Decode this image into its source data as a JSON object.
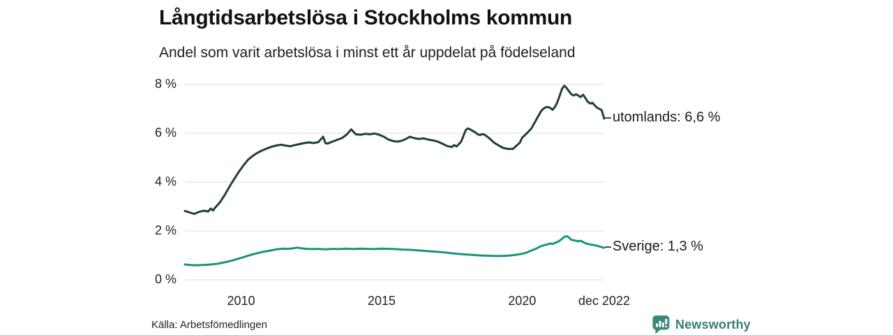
{
  "page": {
    "source": "Källa: Arbetsfömedlingen",
    "brand": {
      "name": "Newsworthy",
      "color": "#377e76",
      "icon": "newsworthy-speech-bubble-chart-icon"
    }
  },
  "chart_data": {
    "type": "line",
    "title": "Långtidsarbetslösa i Stockholms kommun",
    "subtitle": "Andel som varit arbetslösa i minst ett år uppdelat på födelseland",
    "xlabel": "",
    "ylabel": "",
    "xlim": [
      2008.0,
      2022.92
    ],
    "ylim": [
      0,
      8
    ],
    "grid": "horizontal-gridlines",
    "grid_color": "#e3e3e3",
    "background": "#ffffff",
    "legend": "end-of-line-labels",
    "yticks": [
      {
        "v": 0,
        "label": "0 %"
      },
      {
        "v": 2,
        "label": "2 %"
      },
      {
        "v": 4,
        "label": "4 %"
      },
      {
        "v": 6,
        "label": "6 %"
      },
      {
        "v": 8,
        "label": "8 %"
      }
    ],
    "xticks": [
      {
        "v": 2010,
        "label": "2010"
      },
      {
        "v": 2015,
        "label": "2015"
      },
      {
        "v": 2020,
        "label": "2020"
      },
      {
        "v": 2022.92,
        "label": "dec 2022"
      }
    ],
    "series": [
      {
        "name": "utomlands",
        "label": "utomlands: 6,6 %",
        "end_value": "6,6 %",
        "color": "#1f4037",
        "points": [
          [
            2008.0,
            2.82
          ],
          [
            2008.17,
            2.76
          ],
          [
            2008.33,
            2.7
          ],
          [
            2008.5,
            2.78
          ],
          [
            2008.67,
            2.83
          ],
          [
            2008.83,
            2.8
          ],
          [
            2008.92,
            2.92
          ],
          [
            2009.0,
            2.84
          ],
          [
            2009.08,
            2.96
          ],
          [
            2009.25,
            3.18
          ],
          [
            2009.42,
            3.48
          ],
          [
            2009.58,
            3.8
          ],
          [
            2009.75,
            4.12
          ],
          [
            2009.92,
            4.42
          ],
          [
            2010.08,
            4.68
          ],
          [
            2010.25,
            4.92
          ],
          [
            2010.42,
            5.08
          ],
          [
            2010.58,
            5.2
          ],
          [
            2010.75,
            5.3
          ],
          [
            2010.92,
            5.38
          ],
          [
            2011.08,
            5.45
          ],
          [
            2011.25,
            5.5
          ],
          [
            2011.42,
            5.53
          ],
          [
            2011.58,
            5.5
          ],
          [
            2011.75,
            5.47
          ],
          [
            2011.92,
            5.52
          ],
          [
            2012.08,
            5.56
          ],
          [
            2012.25,
            5.6
          ],
          [
            2012.42,
            5.63
          ],
          [
            2012.58,
            5.6
          ],
          [
            2012.75,
            5.64
          ],
          [
            2012.92,
            5.86
          ],
          [
            2013.0,
            5.6
          ],
          [
            2013.08,
            5.58
          ],
          [
            2013.25,
            5.66
          ],
          [
            2013.42,
            5.73
          ],
          [
            2013.58,
            5.8
          ],
          [
            2013.75,
            5.94
          ],
          [
            2013.92,
            6.16
          ],
          [
            2014.0,
            6.06
          ],
          [
            2014.08,
            5.96
          ],
          [
            2014.25,
            5.94
          ],
          [
            2014.42,
            5.98
          ],
          [
            2014.58,
            5.96
          ],
          [
            2014.75,
            5.99
          ],
          [
            2014.92,
            5.94
          ],
          [
            2015.08,
            5.86
          ],
          [
            2015.25,
            5.74
          ],
          [
            2015.42,
            5.68
          ],
          [
            2015.58,
            5.66
          ],
          [
            2015.75,
            5.71
          ],
          [
            2015.92,
            5.8
          ],
          [
            2016.0,
            5.86
          ],
          [
            2016.17,
            5.8
          ],
          [
            2016.33,
            5.77
          ],
          [
            2016.5,
            5.79
          ],
          [
            2016.67,
            5.74
          ],
          [
            2016.83,
            5.71
          ],
          [
            2017.0,
            5.66
          ],
          [
            2017.17,
            5.57
          ],
          [
            2017.33,
            5.48
          ],
          [
            2017.5,
            5.44
          ],
          [
            2017.58,
            5.52
          ],
          [
            2017.67,
            5.46
          ],
          [
            2017.83,
            5.66
          ],
          [
            2017.92,
            5.92
          ],
          [
            2018.0,
            6.14
          ],
          [
            2018.08,
            6.2
          ],
          [
            2018.17,
            6.15
          ],
          [
            2018.25,
            6.09
          ],
          [
            2018.33,
            6.04
          ],
          [
            2018.42,
            5.96
          ],
          [
            2018.5,
            5.93
          ],
          [
            2018.58,
            5.97
          ],
          [
            2018.67,
            5.94
          ],
          [
            2018.83,
            5.8
          ],
          [
            2019.0,
            5.62
          ],
          [
            2019.17,
            5.5
          ],
          [
            2019.33,
            5.4
          ],
          [
            2019.5,
            5.36
          ],
          [
            2019.67,
            5.36
          ],
          [
            2019.75,
            5.44
          ],
          [
            2019.92,
            5.62
          ],
          [
            2020.0,
            5.82
          ],
          [
            2020.17,
            6.0
          ],
          [
            2020.33,
            6.2
          ],
          [
            2020.5,
            6.55
          ],
          [
            2020.67,
            6.9
          ],
          [
            2020.75,
            7.0
          ],
          [
            2020.83,
            7.06
          ],
          [
            2020.92,
            7.08
          ],
          [
            2021.0,
            7.04
          ],
          [
            2021.08,
            6.96
          ],
          [
            2021.17,
            7.08
          ],
          [
            2021.25,
            7.26
          ],
          [
            2021.33,
            7.52
          ],
          [
            2021.42,
            7.82
          ],
          [
            2021.5,
            7.95
          ],
          [
            2021.58,
            7.86
          ],
          [
            2021.67,
            7.72
          ],
          [
            2021.75,
            7.6
          ],
          [
            2021.83,
            7.55
          ],
          [
            2021.92,
            7.6
          ],
          [
            2022.0,
            7.55
          ],
          [
            2022.08,
            7.48
          ],
          [
            2022.17,
            7.58
          ],
          [
            2022.25,
            7.45
          ],
          [
            2022.33,
            7.3
          ],
          [
            2022.42,
            7.22
          ],
          [
            2022.5,
            7.25
          ],
          [
            2022.58,
            7.15
          ],
          [
            2022.67,
            7.05
          ],
          [
            2022.75,
            7.0
          ],
          [
            2022.83,
            6.95
          ],
          [
            2022.92,
            6.6
          ]
        ]
      },
      {
        "name": "Sverige",
        "label": "Sverige: 1,3 %",
        "end_value": "1,3 %",
        "color": "#16957e",
        "points": [
          [
            2008.0,
            0.63
          ],
          [
            2008.17,
            0.61
          ],
          [
            2008.33,
            0.6
          ],
          [
            2008.5,
            0.6
          ],
          [
            2008.67,
            0.61
          ],
          [
            2008.83,
            0.62
          ],
          [
            2009.0,
            0.64
          ],
          [
            2009.17,
            0.66
          ],
          [
            2009.33,
            0.7
          ],
          [
            2009.5,
            0.74
          ],
          [
            2009.67,
            0.79
          ],
          [
            2009.83,
            0.84
          ],
          [
            2010.0,
            0.9
          ],
          [
            2010.17,
            0.96
          ],
          [
            2010.33,
            1.02
          ],
          [
            2010.5,
            1.07
          ],
          [
            2010.67,
            1.12
          ],
          [
            2010.83,
            1.16
          ],
          [
            2011.0,
            1.19
          ],
          [
            2011.17,
            1.23
          ],
          [
            2011.33,
            1.26
          ],
          [
            2011.5,
            1.28
          ],
          [
            2011.67,
            1.27
          ],
          [
            2011.83,
            1.29
          ],
          [
            2012.0,
            1.32
          ],
          [
            2012.17,
            1.29
          ],
          [
            2012.33,
            1.27
          ],
          [
            2012.5,
            1.26
          ],
          [
            2012.75,
            1.27
          ],
          [
            2013.0,
            1.25
          ],
          [
            2013.25,
            1.27
          ],
          [
            2013.5,
            1.26
          ],
          [
            2013.75,
            1.28
          ],
          [
            2014.0,
            1.26
          ],
          [
            2014.25,
            1.28
          ],
          [
            2014.5,
            1.27
          ],
          [
            2014.75,
            1.26
          ],
          [
            2015.0,
            1.28
          ],
          [
            2015.25,
            1.27
          ],
          [
            2015.5,
            1.26
          ],
          [
            2015.75,
            1.24
          ],
          [
            2016.0,
            1.23
          ],
          [
            2016.25,
            1.21
          ],
          [
            2016.5,
            1.19
          ],
          [
            2016.75,
            1.17
          ],
          [
            2017.0,
            1.15
          ],
          [
            2017.25,
            1.12
          ],
          [
            2017.5,
            1.09
          ],
          [
            2017.75,
            1.06
          ],
          [
            2018.0,
            1.04
          ],
          [
            2018.25,
            1.02
          ],
          [
            2018.5,
            1.0
          ],
          [
            2018.75,
            0.99
          ],
          [
            2019.0,
            0.98
          ],
          [
            2019.25,
            0.98
          ],
          [
            2019.5,
            0.99
          ],
          [
            2019.75,
            1.02
          ],
          [
            2020.0,
            1.07
          ],
          [
            2020.17,
            1.12
          ],
          [
            2020.33,
            1.2
          ],
          [
            2020.5,
            1.28
          ],
          [
            2020.67,
            1.38
          ],
          [
            2020.83,
            1.43
          ],
          [
            2020.92,
            1.46
          ],
          [
            2021.0,
            1.49
          ],
          [
            2021.08,
            1.47
          ],
          [
            2021.17,
            1.51
          ],
          [
            2021.25,
            1.55
          ],
          [
            2021.33,
            1.6
          ],
          [
            2021.42,
            1.68
          ],
          [
            2021.5,
            1.76
          ],
          [
            2021.58,
            1.79
          ],
          [
            2021.67,
            1.74
          ],
          [
            2021.75,
            1.64
          ],
          [
            2021.83,
            1.62
          ],
          [
            2021.92,
            1.6
          ],
          [
            2022.0,
            1.58
          ],
          [
            2022.08,
            1.6
          ],
          [
            2022.17,
            1.55
          ],
          [
            2022.25,
            1.5
          ],
          [
            2022.42,
            1.45
          ],
          [
            2022.58,
            1.42
          ],
          [
            2022.75,
            1.37
          ],
          [
            2022.83,
            1.34
          ],
          [
            2022.92,
            1.31
          ]
        ]
      }
    ]
  }
}
